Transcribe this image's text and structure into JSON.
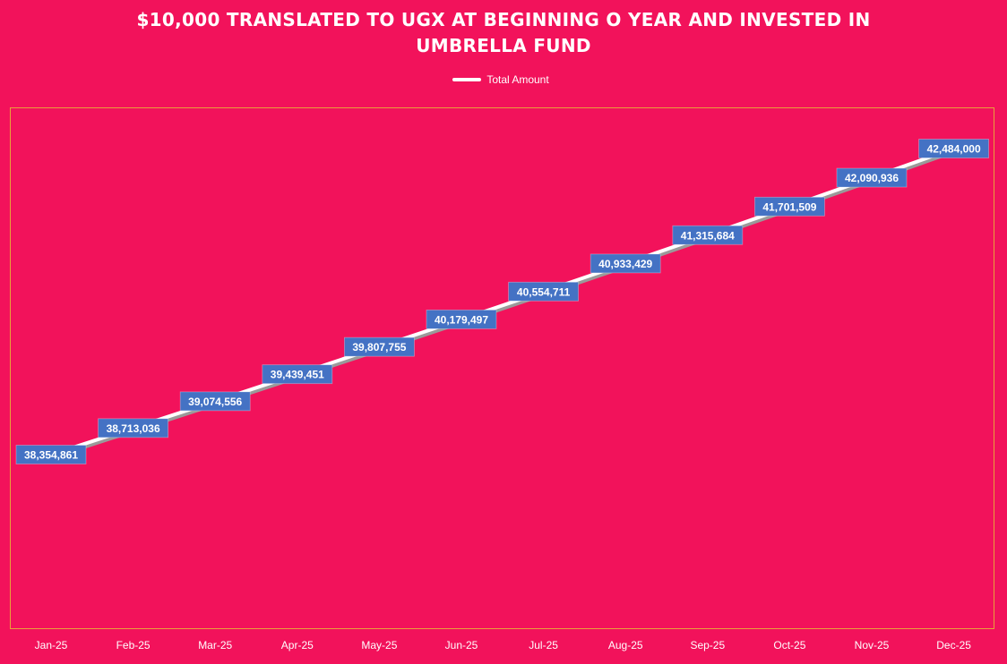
{
  "colors": {
    "background": "#F2125B",
    "line": "#FFFFFF",
    "line_shadow": "#9A9A9A",
    "label_box": "#4472C4",
    "label_text": "#FFFFFF",
    "frame_border": "#E8A13A"
  },
  "chart_data": {
    "type": "line",
    "title_lines": [
      "$10,000 TRANSLATED TO UGX AT BEGINNING O YEAR AND INVESTED IN",
      "UMBRELLA FUND"
    ],
    "categories": [
      "Jan-25",
      "Feb-25",
      "Mar-25",
      "Apr-25",
      "May-25",
      "Jun-25",
      "Jul-25",
      "Aug-25",
      "Sep-25",
      "Oct-25",
      "Nov-25",
      "Dec-25"
    ],
    "series": [
      {
        "name": "Total Amount",
        "values": [
          38354861,
          38713036,
          39074556,
          39439451,
          39807755,
          40179497,
          40554711,
          40933429,
          41315684,
          41701509,
          42090936,
          42484000
        ],
        "labels": [
          "38,354,861",
          "38,713,036",
          "39,074,556",
          "39,439,451",
          "39,807,755",
          "40,179,497",
          "40,554,711",
          "40,933,429",
          "41,315,684",
          "41,701,509",
          "42,090,936",
          "42,484,000"
        ]
      }
    ],
    "xlabel": "",
    "ylabel": "",
    "y_axis_visible": false,
    "grid": false,
    "drop_lines": true,
    "legend_position": "top-center"
  }
}
